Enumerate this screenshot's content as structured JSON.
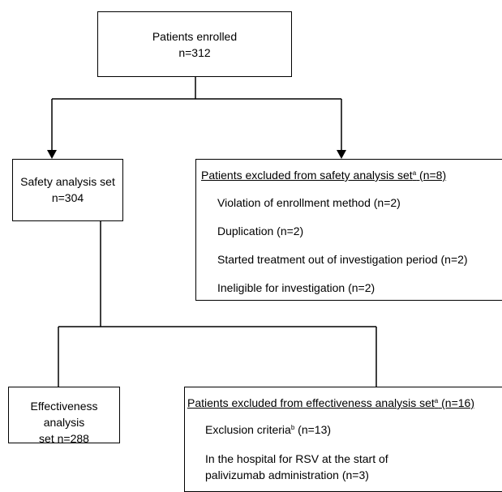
{
  "enrolled": {
    "label": "Patients enrolled",
    "count": "n=312"
  },
  "safety": {
    "label": "Safety analysis set",
    "count": "n=304"
  },
  "safety_excluded": {
    "title": "Patients excluded from safety analysis set",
    "sup": "a",
    "count": " (n=8)",
    "items": [
      "Violation of enrollment method (n=2)",
      "Duplication (n=2)",
      "Started treatment out of investigation period (n=2)",
      "Ineligible for investigation (n=2)"
    ]
  },
  "effectiveness": {
    "label": "Effectiveness analysis",
    "count": "set  n=288"
  },
  "effectiveness_excluded": {
    "title": "Patients excluded from effectiveness analysis set",
    "sup": "a",
    "count": " (n=16)",
    "item1": {
      "text": "Exclusion criteria",
      "sup": "b",
      "count": " (n=13)"
    },
    "item2": {
      "line1": "In the hospital for RSV at the start of",
      "line2": "palivizumab administration (n=3)"
    }
  }
}
